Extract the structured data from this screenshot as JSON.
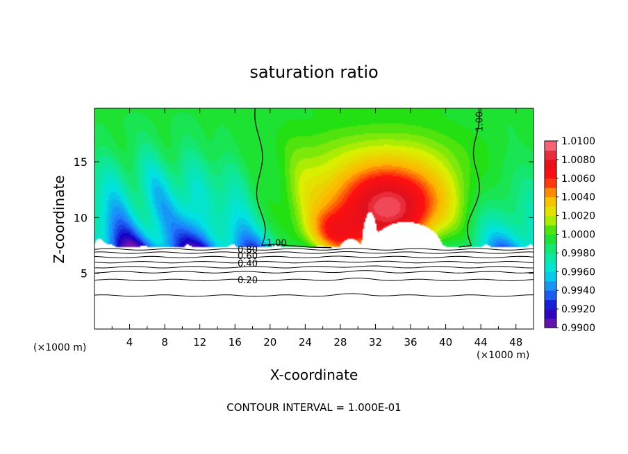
{
  "chart_data": {
    "type": "heatmap",
    "title": "saturation ratio",
    "xlabel": "X-coordinate",
    "ylabel": "Z-coordinate",
    "x_unit_left": "(×1000 m)",
    "x_unit_right": "(×1000 m)",
    "footer": "CONTOUR INTERVAL = 1.000E-01",
    "xlim": [
      0,
      50
    ],
    "ylim": [
      0,
      19.8
    ],
    "x_ticks": [
      4,
      8,
      12,
      16,
      20,
      24,
      28,
      32,
      36,
      40,
      44,
      48
    ],
    "y_ticks": [
      5,
      10,
      15
    ],
    "colorbar": {
      "min": 0.99,
      "max": 1.01,
      "labels": [
        "1.0100",
        "1.0080",
        "1.0060",
        "1.0040",
        "1.0020",
        "1.0000",
        "0.9980",
        "0.9960",
        "0.9940",
        "0.9920",
        "0.9900"
      ]
    },
    "contour_labels": [
      "1.00",
      "1.00",
      "0.80",
      "0.60",
      "0.40",
      "0.20"
    ],
    "colors": {
      "s_0.9900": "#7a18a8",
      "s_0.9920": "#1400c8",
      "s_0.9940": "#1e7cff",
      "s_0.9960": "#00e2e2",
      "s_0.9980": "#10e890",
      "s_1.0000": "#22e012",
      "s_1.0020": "#d8f000",
      "s_1.0040": "#ffb400",
      "s_1.0060": "#ff1010",
      "s_1.0080": "#e0101c",
      "s_1.0100": "#ff7f92"
    }
  }
}
